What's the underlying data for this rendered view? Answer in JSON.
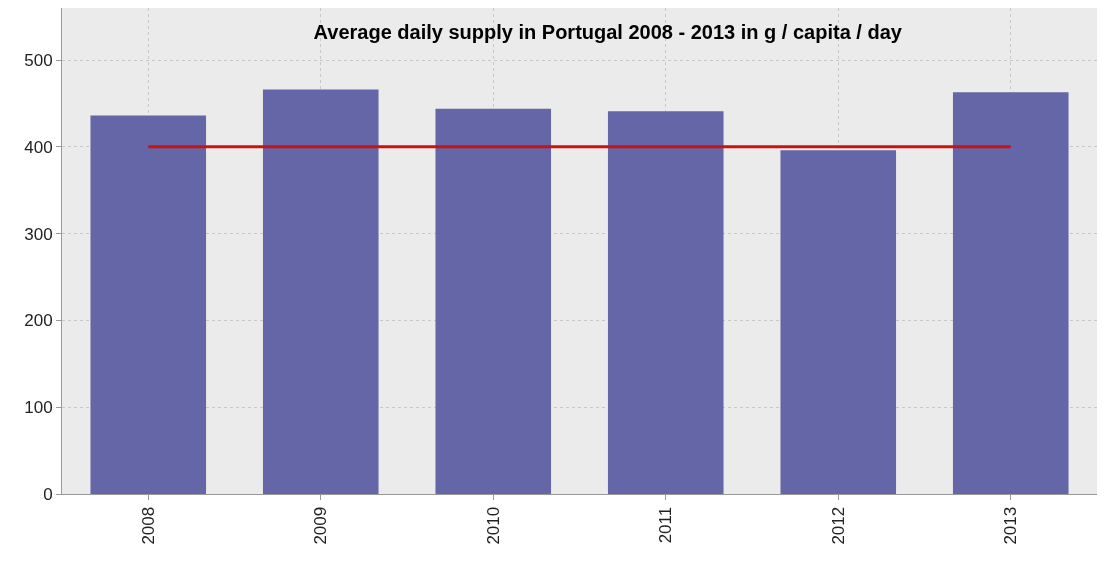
{
  "chart_data": {
    "type": "bar",
    "title": "Average daily supply in Portugal 2008 - 2013 in g / capita / day",
    "categories": [
      "2008",
      "2009",
      "2010",
      "2011",
      "2012",
      "2013"
    ],
    "values": [
      436,
      466,
      444,
      441,
      396,
      463
    ],
    "color": "#6566a8",
    "ylim": [
      0,
      560
    ],
    "yticks": [
      0,
      100,
      200,
      300,
      400,
      500
    ],
    "grid": true,
    "ref_lines": [
      {
        "axis": "y",
        "value": 400,
        "color": "#cc1111"
      }
    ]
  }
}
